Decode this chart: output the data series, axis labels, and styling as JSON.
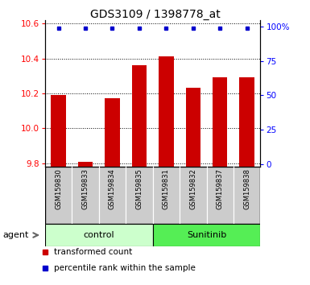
{
  "title": "GDS3109 / 1398778_at",
  "samples": [
    "GSM159830",
    "GSM159833",
    "GSM159834",
    "GSM159835",
    "GSM159831",
    "GSM159832",
    "GSM159837",
    "GSM159838"
  ],
  "bar_values": [
    10.19,
    9.81,
    10.17,
    10.36,
    10.41,
    10.23,
    10.29,
    10.29
  ],
  "percentile_values": [
    99,
    99,
    99,
    99,
    99,
    99,
    99,
    99
  ],
  "bar_bottom": 9.78,
  "ylim_left": [
    9.78,
    10.62
  ],
  "ylim_right": [
    -2,
    105
  ],
  "yticks_left": [
    9.8,
    10.0,
    10.2,
    10.4,
    10.6
  ],
  "yticks_right": [
    0,
    25,
    50,
    75,
    100
  ],
  "ytick_labels_right": [
    "0",
    "25",
    "50",
    "75",
    "100%"
  ],
  "groups": [
    {
      "label": "control",
      "start": 0,
      "end": 4,
      "color": "#ccffcc"
    },
    {
      "label": "Sunitinib",
      "start": 4,
      "end": 8,
      "color": "#55ee55"
    }
  ],
  "group_row_label": "agent",
  "bar_color": "#cc0000",
  "percentile_color": "#0000cc",
  "label_bar": "transformed count",
  "label_percentile": "percentile rank within the sample",
  "bar_width": 0.55,
  "background_color": "#ffffff",
  "sample_bg_color": "#cccccc",
  "title_fontsize": 10,
  "tick_fontsize": 7.5,
  "sample_fontsize": 6,
  "group_fontsize": 8,
  "legend_fontsize": 7.5
}
